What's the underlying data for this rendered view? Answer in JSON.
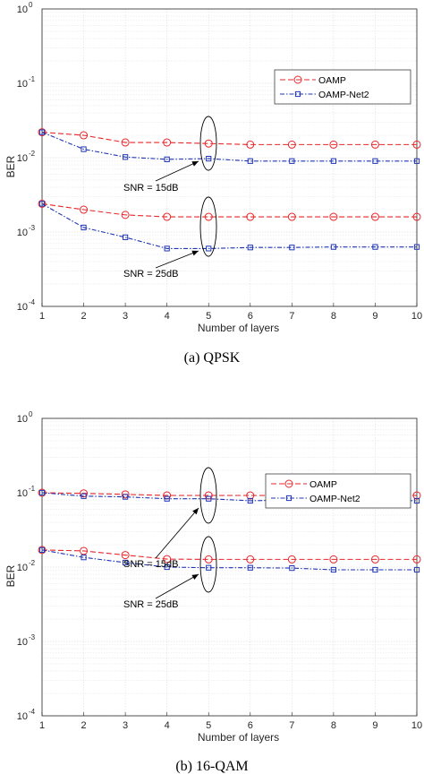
{
  "chart_data": [
    {
      "type": "line",
      "caption": "(a) QPSK",
      "xlabel": "Number of layers",
      "ylabel": "BER",
      "xlim": [
        1,
        10
      ],
      "ylim": [
        0.0001,
        1
      ],
      "yscale": "log",
      "grid": true,
      "legend_position": "top-right",
      "x": [
        1,
        2,
        3,
        4,
        5,
        6,
        7,
        8,
        9,
        10
      ],
      "x_tick_labels": [
        "1",
        "2",
        "3",
        "4",
        "5",
        "6",
        "7",
        "8",
        "9",
        "10"
      ],
      "y_tick_labels": [
        {
          "base": "10",
          "exp": "0"
        },
        {
          "base": "10",
          "exp": "-1"
        },
        {
          "base": "10",
          "exp": "-2"
        },
        {
          "base": "10",
          "exp": "-3"
        },
        {
          "base": "10",
          "exp": "-4"
        }
      ],
      "series": [
        {
          "name": "OAMP",
          "snr_group": "15dB",
          "color": "#e8262a",
          "values": [
            0.022,
            0.02,
            0.016,
            0.016,
            0.0155,
            0.015,
            0.015,
            0.015,
            0.015,
            0.015
          ]
        },
        {
          "name": "OAMP-Net2",
          "snr_group": "15dB",
          "color": "#1f35b5",
          "values": [
            0.022,
            0.013,
            0.0102,
            0.0095,
            0.0097,
            0.009,
            0.009,
            0.009,
            0.009,
            0.009
          ]
        },
        {
          "name": "OAMP",
          "snr_group": "25dB",
          "color": "#e8262a",
          "values": [
            0.0024,
            0.002,
            0.0017,
            0.0016,
            0.0016,
            0.0016,
            0.0016,
            0.0016,
            0.0016,
            0.0016
          ]
        },
        {
          "name": "OAMP-Net2",
          "snr_group": "25dB",
          "color": "#1f35b5",
          "values": [
            0.0024,
            0.00115,
            0.00085,
            0.0006,
            0.0006,
            0.00062,
            0.00062,
            0.00063,
            0.00063,
            0.00063
          ]
        }
      ],
      "annotations": [
        {
          "text": "SNR = 15dB",
          "x": 5,
          "y": 0.0095
        },
        {
          "text": "SNR = 25dB",
          "x": 5,
          "y": 0.0006
        }
      ]
    },
    {
      "type": "line",
      "caption": "(b) 16-QAM",
      "xlabel": "Number of layers",
      "ylabel": "BER",
      "xlim": [
        1,
        10
      ],
      "ylim": [
        0.0001,
        1
      ],
      "yscale": "log",
      "grid": true,
      "legend_position": "top-right",
      "x": [
        1,
        2,
        3,
        4,
        5,
        6,
        7,
        8,
        9,
        10
      ],
      "x_tick_labels": [
        "1",
        "2",
        "3",
        "4",
        "5",
        "6",
        "7",
        "8",
        "9",
        "10"
      ],
      "y_tick_labels": [
        {
          "base": "10",
          "exp": "0"
        },
        {
          "base": "10",
          "exp": "-1"
        },
        {
          "base": "10",
          "exp": "-2"
        },
        {
          "base": "10",
          "exp": "-3"
        },
        {
          "base": "10",
          "exp": "-4"
        }
      ],
      "series": [
        {
          "name": "OAMP",
          "snr_group": "15dB",
          "color": "#e8262a",
          "values": [
            0.1,
            0.098,
            0.095,
            0.092,
            0.092,
            0.092,
            0.092,
            0.092,
            0.092,
            0.092
          ]
        },
        {
          "name": "OAMP-Net2",
          "snr_group": "15dB",
          "color": "#1f35b5",
          "values": [
            0.1,
            0.09,
            0.088,
            0.083,
            0.083,
            0.078,
            0.08,
            0.08,
            0.08,
            0.078
          ]
        },
        {
          "name": "OAMP",
          "snr_group": "25dB",
          "color": "#e8262a",
          "values": [
            0.017,
            0.0165,
            0.0145,
            0.0128,
            0.0127,
            0.0127,
            0.0127,
            0.0127,
            0.0127,
            0.0127
          ]
        },
        {
          "name": "OAMP-Net2",
          "snr_group": "25dB",
          "color": "#1f35b5",
          "values": [
            0.017,
            0.0135,
            0.0115,
            0.01,
            0.0098,
            0.0098,
            0.0097,
            0.0092,
            0.0092,
            0.0092
          ]
        }
      ],
      "annotations": [
        {
          "text": "SNR = 15dB",
          "x": 5,
          "y": 0.085
        },
        {
          "text": "SNR = 25dB",
          "x": 5,
          "y": 0.0098
        }
      ]
    }
  ]
}
